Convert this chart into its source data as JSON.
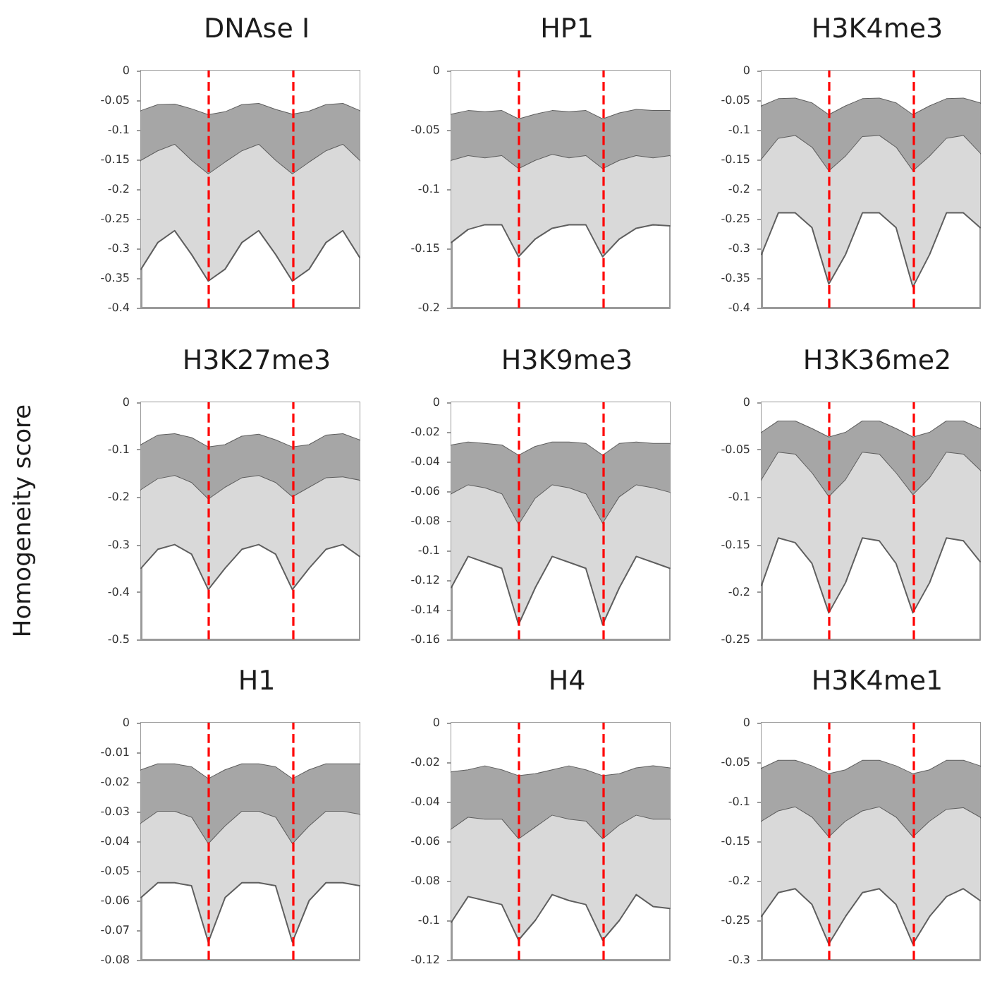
{
  "chart_data": [
    {
      "type": "area",
      "stacked": true,
      "title": "DNAse I",
      "categories": [
        null,
        null,
        null,
        null,
        null,
        null,
        null,
        null,
        null,
        null,
        null,
        null,
        null,
        null
      ],
      "ylim": [
        -0.4,
        0
      ],
      "yticks": [
        0,
        -0.05,
        -0.1,
        -0.15,
        -0.2,
        -0.25,
        -0.3,
        -0.35,
        -0.4
      ],
      "tick_labels": "y",
      "series": [
        {
          "color": "#ffffff",
          "values": [
            -0.068,
            -0.058,
            -0.057,
            -0.065,
            -0.075,
            -0.07,
            -0.058,
            -0.056,
            -0.066,
            -0.074,
            -0.069,
            -0.058,
            -0.056,
            -0.068
          ]
        },
        {
          "color": "#a6a6a6",
          "values": [
            -0.084,
            -0.078,
            -0.068,
            -0.087,
            -0.1,
            -0.085,
            -0.078,
            -0.069,
            -0.086,
            -0.101,
            -0.086,
            -0.078,
            -0.069,
            -0.084
          ]
        },
        {
          "color": "#d9d9d9",
          "values": [
            -0.183,
            -0.154,
            -0.145,
            -0.158,
            -0.18,
            -0.18,
            -0.154,
            -0.145,
            -0.158,
            -0.18,
            -0.18,
            -0.154,
            -0.145,
            -0.163
          ]
        }
      ]
    },
    {
      "type": "area",
      "stacked": true,
      "title": "HP1",
      "categories": [
        null,
        null,
        null,
        null,
        null,
        null,
        null,
        null,
        null,
        null,
        null,
        null,
        null,
        null
      ],
      "ylim": [
        -0.2,
        0
      ],
      "yticks": [
        0,
        -0.05,
        -0.1,
        -0.15,
        -0.2
      ],
      "tick_labels": "y",
      "series": [
        {
          "color": "#ffffff",
          "values": [
            -0.037,
            -0.034,
            -0.035,
            -0.034,
            -0.041,
            -0.037,
            -0.034,
            -0.035,
            -0.034,
            -0.041,
            -0.036,
            -0.033,
            -0.034,
            -0.034
          ]
        },
        {
          "color": "#a6a6a6",
          "values": [
            -0.039,
            -0.038,
            -0.039,
            -0.038,
            -0.042,
            -0.039,
            -0.037,
            -0.039,
            -0.038,
            -0.042,
            -0.04,
            -0.039,
            -0.04,
            -0.038
          ]
        },
        {
          "color": "#d9d9d9",
          "values": [
            -0.069,
            -0.062,
            -0.056,
            -0.058,
            -0.074,
            -0.066,
            -0.062,
            -0.056,
            -0.058,
            -0.074,
            -0.066,
            -0.061,
            -0.056,
            -0.059
          ]
        }
      ]
    },
    {
      "type": "area",
      "stacked": true,
      "title": "H3K4me3",
      "categories": [
        null,
        null,
        null,
        null,
        null,
        null,
        null,
        null,
        null,
        null,
        null,
        null,
        null,
        null
      ],
      "ylim": [
        -0.4,
        0
      ],
      "yticks": [
        0,
        -0.05,
        -0.1,
        -0.15,
        -0.2,
        -0.25,
        -0.3,
        -0.35,
        -0.4
      ],
      "tick_labels": "y",
      "series": [
        {
          "color": "#ffffff",
          "values": [
            -0.06,
            -0.048,
            -0.047,
            -0.055,
            -0.075,
            -0.06,
            -0.048,
            -0.047,
            -0.055,
            -0.075,
            -0.06,
            -0.048,
            -0.047,
            -0.055
          ]
        },
        {
          "color": "#a6a6a6",
          "values": [
            -0.09,
            -0.067,
            -0.063,
            -0.075,
            -0.095,
            -0.085,
            -0.064,
            -0.063,
            -0.075,
            -0.095,
            -0.085,
            -0.067,
            -0.063,
            -0.085
          ]
        },
        {
          "color": "#d9d9d9",
          "values": [
            -0.16,
            -0.125,
            -0.13,
            -0.135,
            -0.19,
            -0.165,
            -0.128,
            -0.13,
            -0.135,
            -0.195,
            -0.165,
            -0.125,
            -0.13,
            -0.125
          ]
        }
      ]
    },
    {
      "type": "area",
      "stacked": true,
      "title": "H3K27me3",
      "ylabel": "Homogeneity score",
      "categories": [
        null,
        null,
        null,
        null,
        null,
        null,
        null,
        null,
        null,
        null,
        null,
        null,
        null,
        null
      ],
      "ylim": [
        -0.5,
        0
      ],
      "yticks": [
        0,
        -0.1,
        -0.2,
        -0.3,
        -0.4,
        -0.5
      ],
      "tick_labels": "y",
      "series": [
        {
          "color": "#ffffff",
          "values": [
            -0.09,
            -0.07,
            -0.067,
            -0.075,
            -0.095,
            -0.09,
            -0.072,
            -0.068,
            -0.08,
            -0.095,
            -0.09,
            -0.07,
            -0.067,
            -0.08
          ]
        },
        {
          "color": "#a6a6a6",
          "values": [
            -0.095,
            -0.092,
            -0.088,
            -0.095,
            -0.11,
            -0.09,
            -0.088,
            -0.087,
            -0.09,
            -0.105,
            -0.09,
            -0.09,
            -0.091,
            -0.085
          ]
        },
        {
          "color": "#d9d9d9",
          "values": [
            -0.165,
            -0.148,
            -0.145,
            -0.15,
            -0.19,
            -0.17,
            -0.15,
            -0.145,
            -0.15,
            -0.195,
            -0.17,
            -0.15,
            -0.142,
            -0.16
          ]
        }
      ]
    },
    {
      "type": "area",
      "stacked": true,
      "title": "H3K9me3",
      "categories": [
        null,
        null,
        null,
        null,
        null,
        null,
        null,
        null,
        null,
        null,
        null,
        null,
        null,
        null
      ],
      "ylim": [
        -0.16,
        0
      ],
      "yticks": [
        0,
        -0.02,
        -0.04,
        -0.06,
        -0.08,
        -0.1,
        -0.12,
        -0.14,
        -0.16
      ],
      "tick_labels": "y",
      "series": [
        {
          "color": "#ffffff",
          "values": [
            -0.029,
            -0.027,
            -0.028,
            -0.029,
            -0.036,
            -0.03,
            -0.027,
            -0.027,
            -0.028,
            -0.036,
            -0.028,
            -0.027,
            -0.028,
            -0.028
          ]
        },
        {
          "color": "#a6a6a6",
          "values": [
            -0.033,
            -0.029,
            -0.03,
            -0.033,
            -0.047,
            -0.035,
            -0.029,
            -0.031,
            -0.034,
            -0.046,
            -0.036,
            -0.029,
            -0.03,
            -0.033
          ]
        },
        {
          "color": "#d9d9d9",
          "values": [
            -0.063,
            -0.048,
            -0.05,
            -0.05,
            -0.067,
            -0.06,
            -0.048,
            -0.05,
            -0.05,
            -0.068,
            -0.061,
            -0.048,
            -0.05,
            -0.051
          ]
        }
      ]
    },
    {
      "type": "area",
      "stacked": true,
      "title": "H3K36me2",
      "categories": [
        null,
        null,
        null,
        null,
        null,
        null,
        null,
        null,
        null,
        null,
        null,
        null,
        null,
        null
      ],
      "ylim": [
        -0.25,
        0
      ],
      "yticks": [
        0,
        -0.05,
        -0.1,
        -0.15,
        -0.2,
        -0.25
      ],
      "tick_labels": "y",
      "series": [
        {
          "color": "#ffffff",
          "values": [
            -0.032,
            -0.02,
            -0.02,
            -0.028,
            -0.037,
            -0.032,
            -0.02,
            -0.02,
            -0.028,
            -0.037,
            -0.032,
            -0.02,
            -0.02,
            -0.028
          ]
        },
        {
          "color": "#a6a6a6",
          "values": [
            -0.05,
            -0.033,
            -0.035,
            -0.047,
            -0.063,
            -0.05,
            -0.033,
            -0.035,
            -0.047,
            -0.061,
            -0.048,
            -0.033,
            -0.035,
            -0.044
          ]
        },
        {
          "color": "#d9d9d9",
          "values": [
            -0.111,
            -0.09,
            -0.093,
            -0.095,
            -0.122,
            -0.108,
            -0.09,
            -0.091,
            -0.095,
            -0.124,
            -0.11,
            -0.09,
            -0.091,
            -0.096
          ]
        }
      ]
    },
    {
      "type": "area",
      "stacked": true,
      "title": "H1",
      "categories": [
        null,
        null,
        null,
        null,
        null,
        null,
        null,
        null,
        null,
        null,
        null,
        null,
        null,
        null
      ],
      "ylim": [
        -0.08,
        0
      ],
      "yticks": [
        0,
        -0.01,
        -0.02,
        -0.03,
        -0.04,
        -0.05,
        -0.06,
        -0.07,
        -0.08
      ],
      "tick_labels": "y",
      "series": [
        {
          "color": "#ffffff",
          "values": [
            -0.016,
            -0.014,
            -0.014,
            -0.015,
            -0.019,
            -0.016,
            -0.014,
            -0.014,
            -0.015,
            -0.019,
            -0.016,
            -0.014,
            -0.014,
            -0.014
          ]
        },
        {
          "color": "#a6a6a6",
          "values": [
            -0.018,
            -0.016,
            -0.016,
            -0.017,
            -0.022,
            -0.019,
            -0.016,
            -0.016,
            -0.017,
            -0.022,
            -0.019,
            -0.016,
            -0.016,
            -0.017
          ]
        },
        {
          "color": "#d9d9d9",
          "values": [
            -0.025,
            -0.024,
            -0.024,
            -0.023,
            -0.033,
            -0.024,
            -0.024,
            -0.024,
            -0.023,
            -0.033,
            -0.025,
            -0.024,
            -0.024,
            -0.024
          ]
        }
      ]
    },
    {
      "type": "area",
      "stacked": true,
      "title": "H4",
      "categories": [
        null,
        null,
        null,
        null,
        null,
        null,
        null,
        null,
        null,
        null,
        null,
        null,
        null,
        null
      ],
      "ylim": [
        -0.12,
        0
      ],
      "yticks": [
        0,
        -0.02,
        -0.04,
        -0.06,
        -0.08,
        -0.1,
        -0.12
      ],
      "tick_labels": "y",
      "series": [
        {
          "color": "#ffffff",
          "values": [
            -0.025,
            -0.024,
            -0.022,
            -0.024,
            -0.027,
            -0.026,
            -0.024,
            -0.022,
            -0.024,
            -0.027,
            -0.026,
            -0.023,
            -0.022,
            -0.023
          ]
        },
        {
          "color": "#a6a6a6",
          "values": [
            -0.029,
            -0.024,
            -0.027,
            -0.025,
            -0.032,
            -0.027,
            -0.023,
            -0.027,
            -0.026,
            -0.032,
            -0.026,
            -0.024,
            -0.027,
            -0.026
          ]
        },
        {
          "color": "#d9d9d9",
          "values": [
            -0.047,
            -0.04,
            -0.041,
            -0.043,
            -0.051,
            -0.047,
            -0.04,
            -0.041,
            -0.042,
            -0.051,
            -0.048,
            -0.04,
            -0.044,
            -0.045
          ]
        }
      ]
    },
    {
      "type": "area",
      "stacked": true,
      "title": "H3K4me1",
      "categories": [
        null,
        null,
        null,
        null,
        null,
        null,
        null,
        null,
        null,
        null,
        null,
        null,
        null,
        null
      ],
      "ylim": [
        -0.3,
        0
      ],
      "yticks": [
        0,
        -0.05,
        -0.1,
        -0.15,
        -0.2,
        -0.25,
        -0.3
      ],
      "tick_labels": "y",
      "series": [
        {
          "color": "#ffffff",
          "values": [
            -0.058,
            -0.048,
            -0.048,
            -0.055,
            -0.065,
            -0.06,
            -0.048,
            -0.048,
            -0.055,
            -0.065,
            -0.06,
            -0.048,
            -0.048,
            -0.055
          ]
        },
        {
          "color": "#a6a6a6",
          "values": [
            -0.067,
            -0.064,
            -0.059,
            -0.065,
            -0.08,
            -0.065,
            -0.064,
            -0.059,
            -0.065,
            -0.08,
            -0.065,
            -0.062,
            -0.06,
            -0.065
          ]
        },
        {
          "color": "#d9d9d9",
          "values": [
            -0.12,
            -0.103,
            -0.103,
            -0.11,
            -0.135,
            -0.12,
            -0.103,
            -0.103,
            -0.11,
            -0.135,
            -0.12,
            -0.11,
            -0.102,
            -0.105
          ]
        }
      ]
    }
  ]
}
